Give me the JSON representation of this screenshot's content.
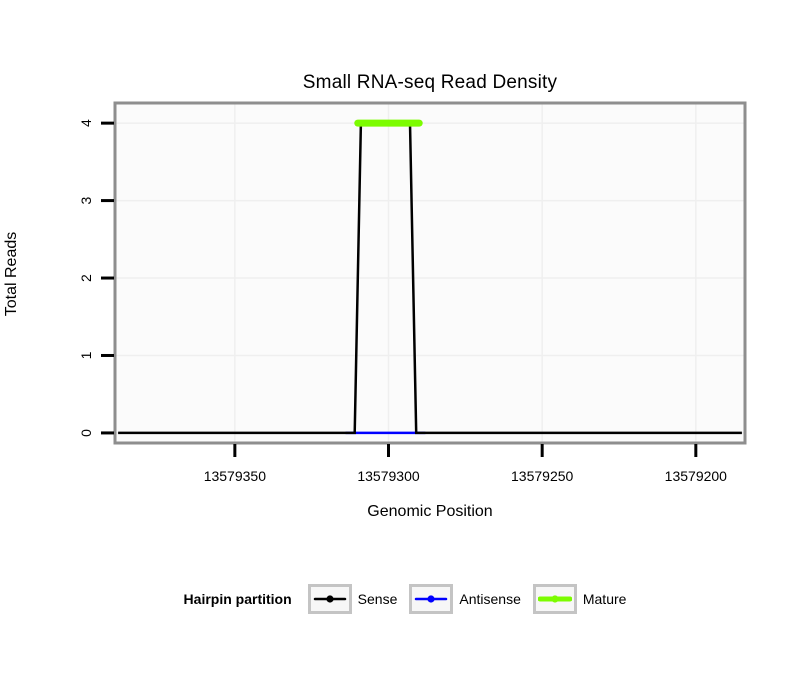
{
  "page": {
    "background": "#FFFFFF"
  },
  "chart": {
    "title": "Small RNA-seq Read Density",
    "xlabel": "Genomic Position",
    "ylabel": "Total Reads",
    "panel": {
      "bg": "#FBFBFB",
      "border_color": "#8E8E8E",
      "grid_color": "#EFEFEF",
      "tick_color": "#000000"
    },
    "axes": {
      "x_ticks": [
        13579350,
        13579300,
        13579250,
        13579200
      ],
      "x_tick_labels": [
        "13579350",
        "13579300",
        "13579250",
        "13579200"
      ],
      "x_domain": [
        13579389,
        13579184
      ],
      "y_ticks": [
        0,
        1,
        2,
        3,
        4
      ],
      "y_tick_labels": [
        "0",
        "1",
        "2",
        "3",
        "4"
      ],
      "y_domain": [
        -0.13,
        4.26
      ]
    }
  },
  "chart_data": {
    "type": "line",
    "title": "Small RNA-seq Read Density",
    "xlabel": "Genomic Position",
    "ylabel": "Total Reads",
    "x_axis_reversed": true,
    "xlim": [
      13579389,
      13579184
    ],
    "ylim": [
      -0.13,
      4.26
    ],
    "grid": true,
    "legend_position": "bottom",
    "draw_order": [
      "Antisense",
      "Sense",
      "Mature"
    ],
    "series": [
      {
        "name": "Sense",
        "color": "#000000",
        "width": 2.5,
        "linecap": "butt",
        "points": [
          [
            13579388,
            0
          ],
          [
            13579311,
            0
          ],
          [
            13579309,
            4
          ],
          [
            13579293,
            4
          ],
          [
            13579291,
            0
          ],
          [
            13579185,
            0
          ]
        ]
      },
      {
        "name": "Antisense",
        "color": "#0000FF",
        "width": 2.5,
        "linecap": "butt",
        "points": [
          [
            13579314,
            0
          ],
          [
            13579288,
            0
          ]
        ]
      },
      {
        "name": "Mature",
        "color": "#7CFC00",
        "width": 7,
        "linecap": "round",
        "points": [
          [
            13579310,
            4
          ],
          [
            13579290,
            4
          ]
        ]
      }
    ]
  },
  "legend": {
    "title": "Hairpin partition",
    "items": [
      {
        "label": "Sense",
        "color": "#000000",
        "lwd": 2.5
      },
      {
        "label": "Antisense",
        "color": "#0000FF",
        "lwd": 2.5
      },
      {
        "label": "Mature",
        "color": "#7CFC00",
        "lwd": 5
      }
    ]
  }
}
